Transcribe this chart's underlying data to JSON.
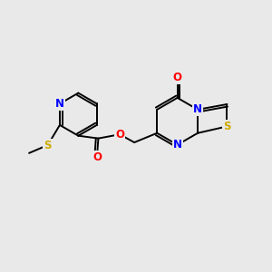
{
  "background_color": "#e9e9e9",
  "bond_color": "#000000",
  "atom_colors": {
    "N": "#0000ff",
    "O": "#ff0000",
    "S": "#ccaa00",
    "C": "#000000"
  },
  "font_size": 8.5,
  "figsize": [
    3.0,
    3.0
  ],
  "dpi": 100
}
